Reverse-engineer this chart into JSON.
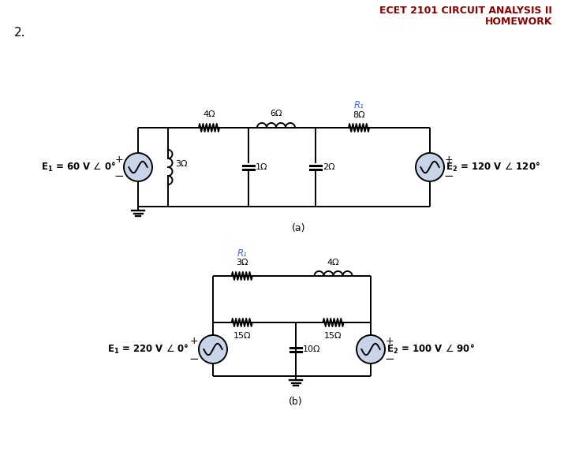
{
  "title_line1": "ECET 2101 CIRCUIT ANALYSIS II",
  "title_line2": "HOMEWORK",
  "problem_number": "2.",
  "title_color": "#8B0000",
  "bg_color": "#ffffff",
  "circuit_color": "#000000",
  "R1_color": "#4169E1",
  "label_a": "(a)",
  "label_b": "(b)"
}
